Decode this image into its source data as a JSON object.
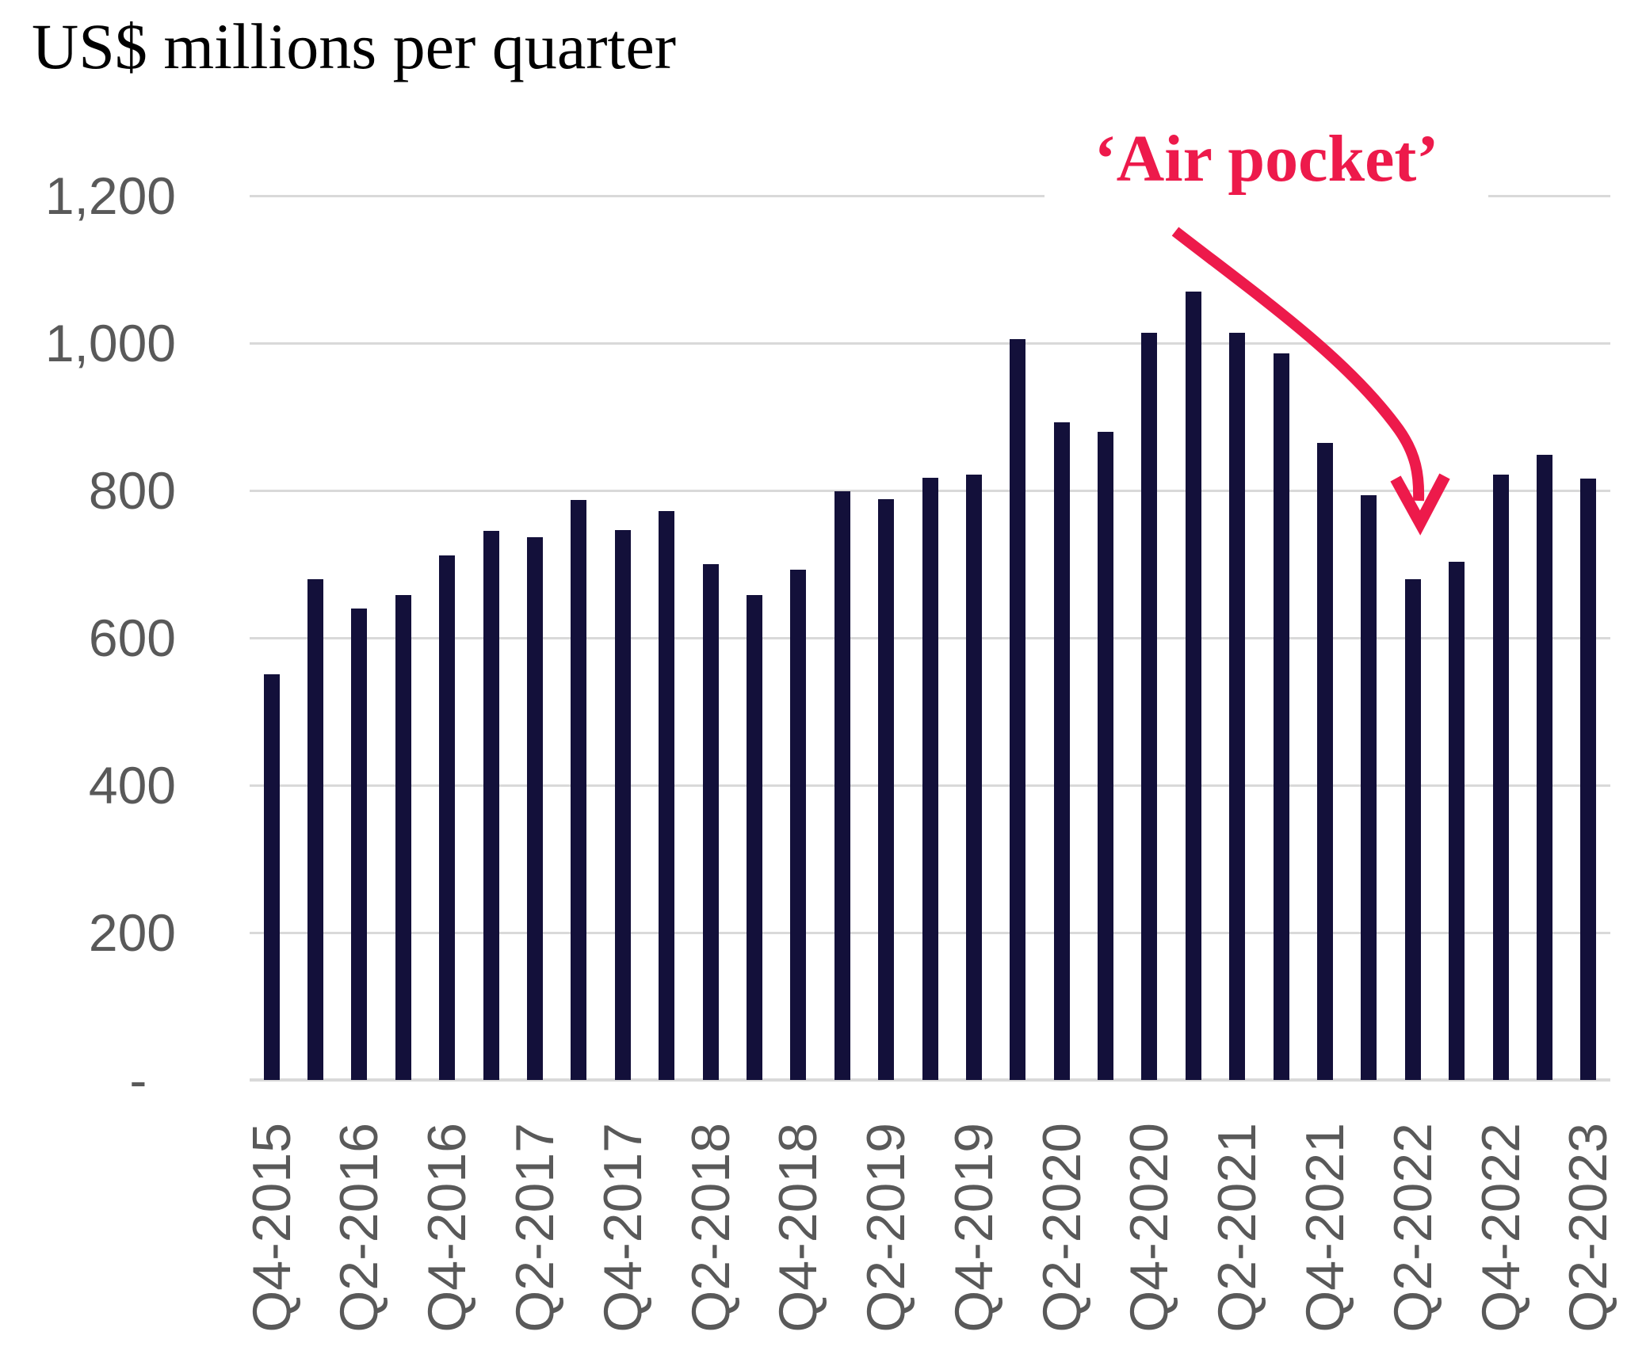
{
  "title": "US$ millions per quarter",
  "annotation": {
    "text": "‘Air pocket’"
  },
  "colors": {
    "bar": "#13103a",
    "accent_red": "#ed1a4b",
    "gridline": "#d9d9d9",
    "tick_text": "#595959",
    "title_text": "#000000",
    "background": "#ffffff"
  },
  "chart_data": {
    "type": "bar",
    "title": "US$ millions per quarter",
    "xlabel": "",
    "ylabel": "US$ millions",
    "ylim": [
      0,
      1200
    ],
    "grid": "horizontal",
    "legend": "none",
    "categories": [
      "Q4-2015",
      "Q1-2016",
      "Q2-2016",
      "Q3-2016",
      "Q4-2016",
      "Q1-2017",
      "Q2-2017",
      "Q3-2017",
      "Q4-2017",
      "Q1-2018",
      "Q2-2018",
      "Q3-2018",
      "Q4-2018",
      "Q1-2019",
      "Q2-2019",
      "Q3-2019",
      "Q4-2019",
      "Q1-2020",
      "Q2-2020",
      "Q3-2020",
      "Q4-2020",
      "Q1-2021",
      "Q2-2021",
      "Q3-2021",
      "Q4-2021",
      "Q1-2022",
      "Q2-2022",
      "Q3-2022",
      "Q4-2022",
      "Q1-2023",
      "Q2-2023"
    ],
    "values": [
      551,
      680,
      640,
      658,
      712,
      745,
      737,
      787,
      746,
      772,
      700,
      658,
      693,
      799,
      788,
      817,
      822,
      1005,
      892,
      880,
      1014,
      1070,
      1014,
      986,
      865,
      794,
      680,
      703,
      822,
      848,
      816
    ],
    "x_tick_labels": [
      "Q4-2015",
      "Q2-2016",
      "Q4-2016",
      "Q2-2017",
      "Q4-2017",
      "Q2-2018",
      "Q4-2018",
      "Q2-2019",
      "Q4-2019",
      "Q2-2020",
      "Q4-2020",
      "Q2-2021",
      "Q4-2021",
      "Q2-2022",
      "Q4-2022",
      "Q2-2023"
    ],
    "x_tick_every": 2,
    "y_tick_labels": [
      "1,200",
      "1,000",
      "800",
      "600",
      "400",
      "200",
      "-  "
    ],
    "y_tick_values": [
      1200,
      1000,
      800,
      600,
      400,
      200,
      0
    ],
    "annotation": {
      "text": "‘Air pocket’",
      "points_to_category": "Q2-2022",
      "points_to_value": 680
    }
  }
}
